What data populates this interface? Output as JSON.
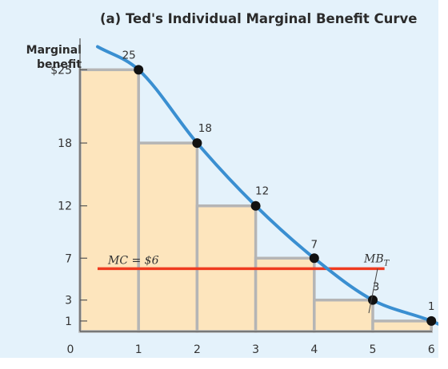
{
  "title": "(a) Ted's Individual Marginal Benefit Curve",
  "y_axis_label_line1": "Marginal",
  "y_axis_label_line2": "benefit",
  "colors": {
    "panel": "#e4f2fb",
    "bar_fill": "#fde5bd",
    "bar_edge": "#b5b5b5",
    "curve": "#3a8fd1",
    "mc_line": "#ef3b20",
    "point": "#111111"
  },
  "chart_data": {
    "type": "bar",
    "title": "(a) Ted's Individual Marginal Benefit Curve",
    "xlabel": "",
    "ylabel": "Marginal benefit",
    "categories": [
      "1",
      "2",
      "3",
      "4",
      "5",
      "6"
    ],
    "values": [
      25,
      18,
      12,
      7,
      3,
      1
    ],
    "x_ticks": [
      "0",
      "1",
      "2",
      "3",
      "4",
      "5",
      "6"
    ],
    "y_ticks": [
      {
        "value": 25,
        "label": "$25"
      },
      {
        "value": 18,
        "label": "18"
      },
      {
        "value": 12,
        "label": "12"
      },
      {
        "value": 7,
        "label": "7"
      },
      {
        "value": 3,
        "label": "3"
      },
      {
        "value": 1,
        "label": "1"
      }
    ],
    "ylim": [
      0,
      28
    ],
    "xlim": [
      0,
      6.8
    ],
    "points": [
      {
        "x": 1,
        "y": 25,
        "label": "25"
      },
      {
        "x": 2,
        "y": 18,
        "label": "18"
      },
      {
        "x": 3,
        "y": 12,
        "label": "12"
      },
      {
        "x": 4,
        "y": 7,
        "label": "7"
      },
      {
        "x": 5,
        "y": 3,
        "label": "3"
      },
      {
        "x": 6,
        "y": 1,
        "label": "1"
      }
    ],
    "mc_line": {
      "y": 6,
      "x_start": 0.3,
      "x_end": 5.2,
      "label": "MC = $6"
    },
    "curve_label": {
      "main": "MB",
      "sub": "T"
    },
    "grid": false
  }
}
